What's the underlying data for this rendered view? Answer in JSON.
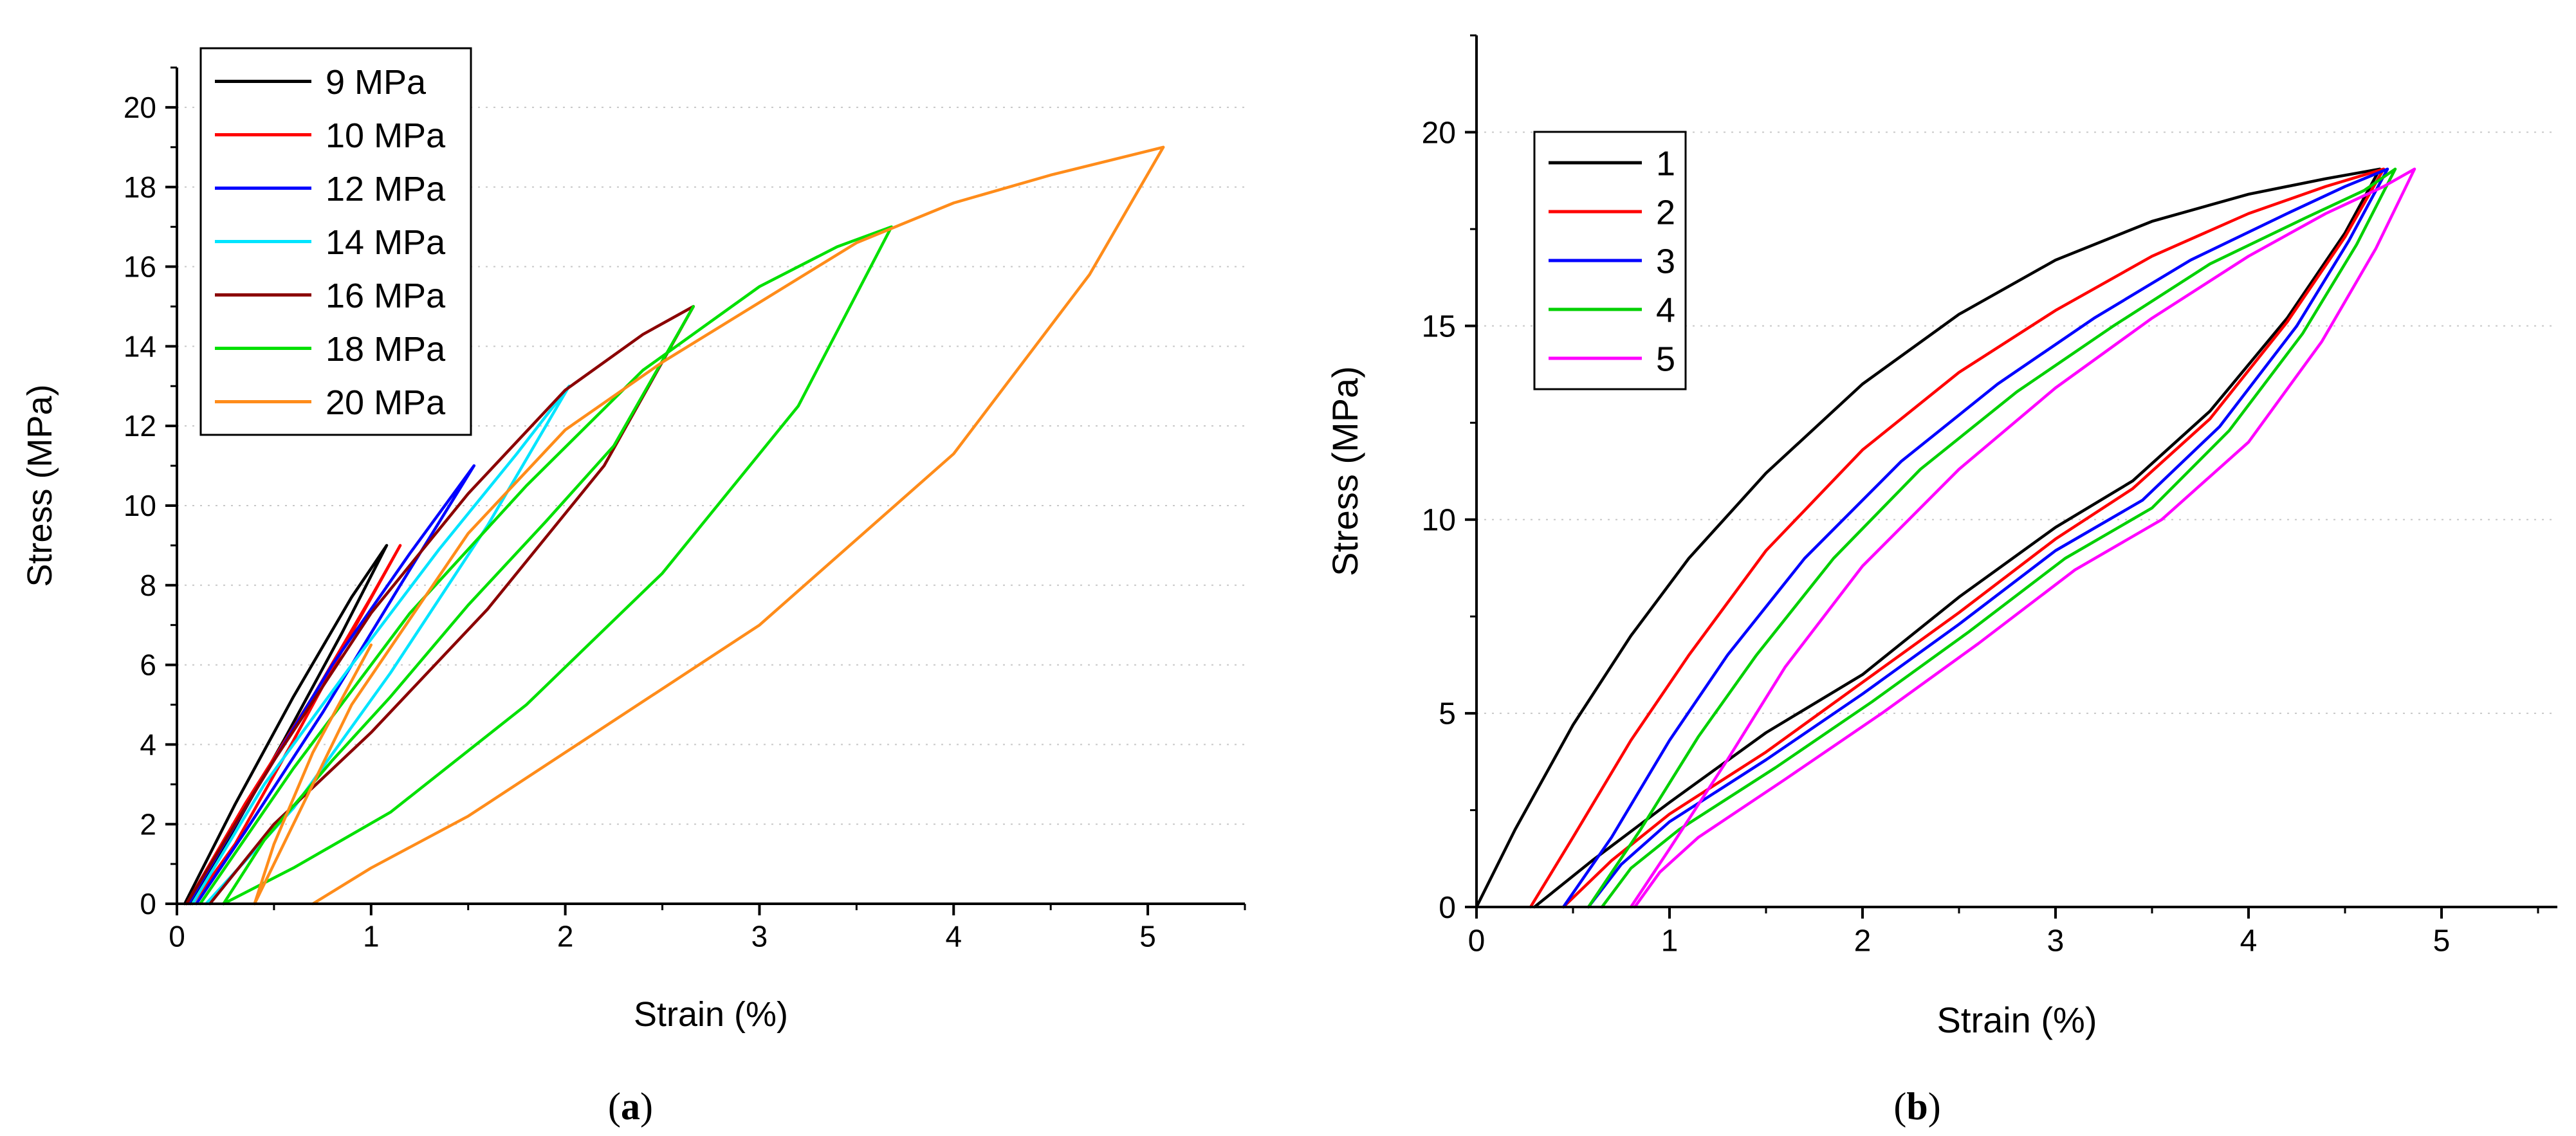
{
  "chart_data": [
    {
      "type": "line",
      "panel_label": "(a)",
      "panel_letter": "a",
      "xlabel": "Strain (%)",
      "ylabel": "Stress (MPa)",
      "xlim": [
        0,
        5.5
      ],
      "ylim": [
        0,
        21
      ],
      "xticks": [
        0,
        1,
        2,
        3,
        4,
        5
      ],
      "yticks": [
        0,
        2,
        4,
        6,
        8,
        10,
        12,
        14,
        16,
        18,
        20
      ],
      "grid": "horizontal-dotted",
      "legend_position": "top-left",
      "series": [
        {
          "name": "9 MPa",
          "color": "#000000",
          "x": [
            0.04,
            0.3,
            0.6,
            0.9,
            1.08,
            0.85,
            0.55,
            0.25,
            0.07
          ],
          "y": [
            0,
            2.5,
            5.2,
            7.7,
            9.0,
            6.8,
            4.1,
            1.5,
            0
          ]
        },
        {
          "name": "10 MPa",
          "color": "#ff0000",
          "x": [
            0.05,
            0.35,
            0.7,
            1.0,
            1.15,
            0.9,
            0.6,
            0.3,
            0.08
          ],
          "y": [
            0,
            2.5,
            5.2,
            7.7,
            9.0,
            6.8,
            4.1,
            1.5,
            0
          ]
        },
        {
          "name": "12 MPa",
          "color": "#0000ff",
          "x": [
            0.06,
            0.4,
            0.8,
            1.2,
            1.53,
            1.15,
            0.75,
            0.35,
            0.1
          ],
          "y": [
            0,
            2.8,
            6.0,
            8.8,
            11.0,
            8.0,
            4.8,
            1.8,
            0
          ]
        },
        {
          "name": "14 MPa",
          "color": "#00e5ff",
          "x": [
            0.08,
            0.45,
            0.9,
            1.35,
            1.75,
            2.02,
            1.6,
            1.1,
            0.6,
            0.15
          ],
          "y": [
            0,
            3.0,
            6.0,
            8.9,
            11.3,
            13.0,
            9.5,
            5.8,
            2.4,
            0
          ]
        },
        {
          "name": "16 MPa",
          "color": "#8b0000",
          "x": [
            0.05,
            0.5,
            1.0,
            1.5,
            2.0,
            2.4,
            2.66,
            2.2,
            1.6,
            1.0,
            0.5,
            0.17
          ],
          "y": [
            0,
            3.6,
            7.3,
            10.3,
            12.9,
            14.3,
            15.0,
            11.0,
            7.4,
            4.3,
            2.0,
            0
          ]
        },
        {
          "name": "18 MPa",
          "color": "#00e000",
          "x": [
            0.12,
            0.6,
            1.2,
            1.8,
            2.4,
            3.0,
            3.4,
            3.68,
            3.2,
            2.5,
            1.8,
            1.1,
            0.6,
            0.24
          ],
          "y": [
            0,
            3.4,
            7.3,
            10.5,
            13.4,
            15.5,
            16.5,
            17.0,
            12.5,
            8.3,
            5.0,
            2.3,
            0.9,
            0
          ],
          "extra": {
            "x": [
              0.24,
              0.45,
              0.8,
              1.1,
              1.5,
              1.9,
              2.25,
              2.66
            ],
            "y": [
              0,
              1.6,
              3.6,
              5.2,
              7.5,
              9.6,
              11.5,
              15.0
            ]
          }
        },
        {
          "name": "20 MPa",
          "color": "#ff8c1a",
          "x": [
            0.4,
            0.9,
            1.5,
            2.0,
            2.5,
            3.0,
            3.5,
            4.0,
            4.5,
            5.08,
            4.7,
            4.0,
            3.0,
            2.0,
            1.5,
            1.0,
            0.7
          ],
          "y": [
            0,
            5.0,
            9.3,
            11.9,
            13.6,
            15.1,
            16.6,
            17.6,
            18.3,
            19.0,
            15.8,
            11.3,
            7.0,
            3.8,
            2.2,
            0.9,
            0
          ],
          "extra": {
            "x": [
              0.4,
              0.5,
              0.7,
              1.0
            ],
            "y": [
              0,
              1.5,
              3.8,
              6.5
            ]
          }
        }
      ]
    },
    {
      "type": "line",
      "panel_label": "(b)",
      "panel_letter": "b",
      "xlabel": "Strain (%)",
      "ylabel": "Stress (MPa)",
      "xlim": [
        0,
        5.6
      ],
      "ylim": [
        0,
        22.5
      ],
      "xticks": [
        0,
        1,
        2,
        3,
        4,
        5
      ],
      "yticks": [
        0,
        5,
        10,
        15,
        20
      ],
      "grid": "horizontal-dotted",
      "legend_position": "top-left",
      "series": [
        {
          "name": "1",
          "color": "#000000",
          "x": [
            0,
            0.2,
            0.5,
            0.8,
            1.1,
            1.5,
            2.0,
            2.5,
            3.0,
            3.5,
            4.0,
            4.4,
            4.68,
            4.5,
            4.2,
            3.8,
            3.4,
            3.0,
            2.5,
            2.0,
            1.5,
            1.0,
            0.6,
            0.3
          ],
          "y": [
            0,
            2.0,
            4.7,
            7.0,
            9.0,
            11.2,
            13.5,
            15.3,
            16.7,
            17.7,
            18.4,
            18.8,
            19.05,
            17.4,
            15.2,
            12.8,
            11.0,
            9.8,
            8.0,
            6.0,
            4.5,
            2.7,
            1.2,
            0
          ]
        },
        {
          "name": "2",
          "color": "#ff0000",
          "x": [
            0.28,
            0.5,
            0.8,
            1.1,
            1.5,
            2.0,
            2.5,
            3.0,
            3.5,
            4.0,
            4.4,
            4.7,
            4.5,
            4.2,
            3.8,
            3.4,
            3.0,
            2.5,
            2.0,
            1.5,
            1.0,
            0.7,
            0.45
          ],
          "y": [
            0,
            1.8,
            4.3,
            6.5,
            9.2,
            11.8,
            13.8,
            15.4,
            16.8,
            17.9,
            18.6,
            19.05,
            17.3,
            15.1,
            12.6,
            10.8,
            9.5,
            7.6,
            5.8,
            4.0,
            2.4,
            1.2,
            0
          ]
        },
        {
          "name": "3",
          "color": "#0000ff",
          "x": [
            0.45,
            0.7,
            1.0,
            1.3,
            1.7,
            2.2,
            2.7,
            3.2,
            3.7,
            4.2,
            4.5,
            4.72,
            4.52,
            4.25,
            3.85,
            3.45,
            3.0,
            2.5,
            2.0,
            1.5,
            1.0,
            0.75,
            0.58
          ],
          "y": [
            0,
            1.8,
            4.3,
            6.5,
            9.0,
            11.5,
            13.5,
            15.2,
            16.7,
            17.9,
            18.6,
            19.05,
            17.2,
            15.0,
            12.4,
            10.5,
            9.2,
            7.3,
            5.5,
            3.8,
            2.2,
            1.1,
            0
          ]
        },
        {
          "name": "4",
          "color": "#00d000",
          "x": [
            0.58,
            0.85,
            1.15,
            1.45,
            1.85,
            2.3,
            2.8,
            3.3,
            3.8,
            4.3,
            4.6,
            4.76,
            4.56,
            4.28,
            3.9,
            3.5,
            3.05,
            2.55,
            2.05,
            1.55,
            1.05,
            0.8,
            0.65
          ],
          "y": [
            0,
            2.0,
            4.4,
            6.5,
            9.0,
            11.3,
            13.3,
            15.0,
            16.6,
            17.8,
            18.5,
            19.05,
            17.1,
            14.8,
            12.3,
            10.3,
            9.0,
            7.1,
            5.3,
            3.6,
            2.0,
            1.0,
            0
          ]
        },
        {
          "name": "5",
          "color": "#ff00ff",
          "x": [
            0.8,
            1.0,
            1.3,
            1.6,
            2.0,
            2.5,
            3.0,
            3.5,
            4.0,
            4.4,
            4.7,
            4.86,
            4.66,
            4.38,
            4.0,
            3.55,
            3.1,
            2.6,
            2.1,
            1.6,
            1.15,
            0.95,
            0.82
          ],
          "y": [
            0,
            1.5,
            3.8,
            6.2,
            8.8,
            11.3,
            13.4,
            15.2,
            16.8,
            17.9,
            18.6,
            19.05,
            17.0,
            14.6,
            12.0,
            10.0,
            8.7,
            6.8,
            5.0,
            3.3,
            1.8,
            0.9,
            0
          ]
        }
      ]
    }
  ]
}
